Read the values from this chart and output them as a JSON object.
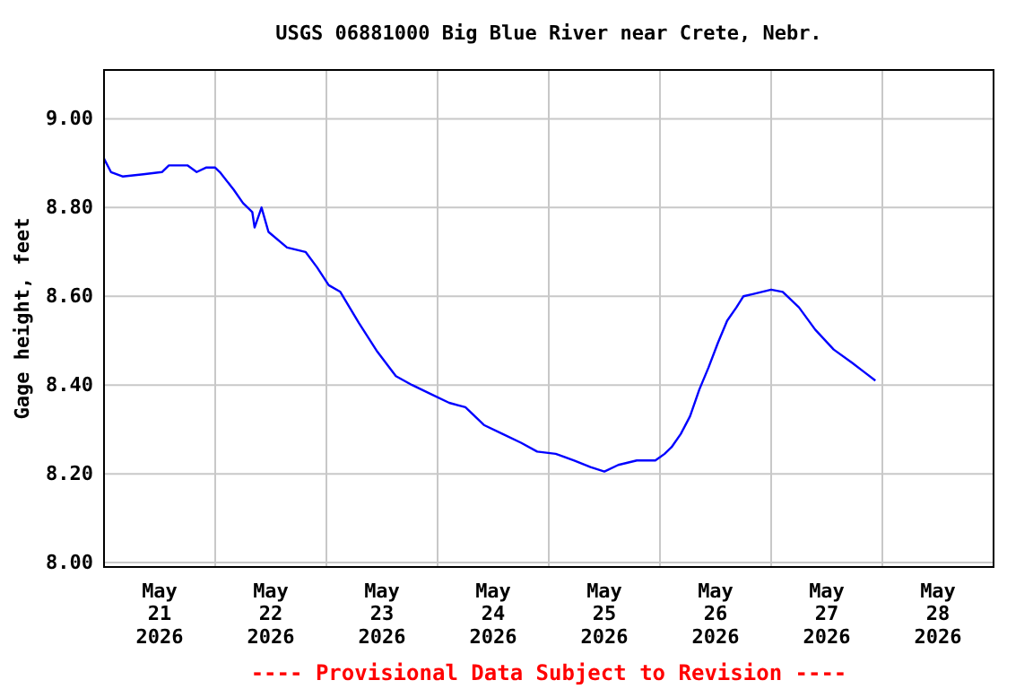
{
  "chart_data": {
    "type": "line",
    "title": "USGS 06881000 Big Blue River near Crete, Nebr.",
    "ylabel": "Gage height, feet",
    "annotations": [
      "---- Provisional Data Subject to Revision ----"
    ],
    "x": [
      "2026-05-21T00:00",
      "2026-05-21T01:30",
      "2026-05-21T04:00",
      "2026-05-21T08:30",
      "2026-05-21T12:30",
      "2026-05-21T14:00",
      "2026-05-21T18:00",
      "2026-05-21T20:00",
      "2026-05-21T22:00",
      "2026-05-22T00:00",
      "2026-05-22T01:00",
      "2026-05-22T04:00",
      "2026-05-22T06:00",
      "2026-05-22T08:00",
      "2026-05-22T08:30",
      "2026-05-22T10:00",
      "2026-05-22T11:30",
      "2026-05-22T15:30",
      "2026-05-22T19:30",
      "2026-05-22T22:00",
      "2026-05-23T00:30",
      "2026-05-23T03:00",
      "2026-05-23T07:00",
      "2026-05-23T11:00",
      "2026-05-23T15:00",
      "2026-05-23T18:30",
      "2026-05-23T22:30",
      "2026-05-24T02:30",
      "2026-05-24T06:00",
      "2026-05-24T10:00",
      "2026-05-24T14:00",
      "2026-05-24T18:00",
      "2026-05-24T21:30",
      "2026-05-25T01:30",
      "2026-05-25T05:30",
      "2026-05-25T09:00",
      "2026-05-25T12:00",
      "2026-05-25T15:00",
      "2026-05-25T19:00",
      "2026-05-25T23:00",
      "2026-05-26T01:00",
      "2026-05-26T02:30",
      "2026-05-26T04:30",
      "2026-05-26T06:30",
      "2026-05-26T08:30",
      "2026-05-26T10:30",
      "2026-05-26T12:30",
      "2026-05-26T14:30",
      "2026-05-26T16:30",
      "2026-05-26T18:00",
      "2026-05-26T20:00",
      "2026-05-26T22:00",
      "2026-05-27T00:00",
      "2026-05-27T02:30",
      "2026-05-27T06:00",
      "2026-05-27T09:30",
      "2026-05-27T13:30",
      "2026-05-27T17:30",
      "2026-05-27T20:00",
      "2026-05-27T22:30"
    ],
    "series": [
      {
        "color": "#0000ff",
        "values": [
          8.91,
          8.88,
          8.87,
          8.875,
          8.88,
          8.895,
          8.895,
          8.88,
          8.89,
          8.89,
          8.88,
          8.84,
          8.81,
          8.79,
          8.755,
          8.8,
          8.745,
          8.71,
          8.7,
          8.665,
          8.625,
          8.61,
          8.54,
          8.475,
          8.42,
          8.4,
          8.38,
          8.36,
          8.35,
          8.31,
          8.29,
          8.27,
          8.25,
          8.245,
          8.23,
          8.215,
          8.205,
          8.22,
          8.23,
          8.23,
          8.245,
          8.26,
          8.29,
          8.33,
          8.39,
          8.44,
          8.495,
          8.545,
          8.575,
          8.6,
          8.605,
          8.61,
          8.615,
          8.61,
          8.575,
          8.525,
          8.48,
          8.45,
          8.43,
          8.41
        ]
      }
    ],
    "xlim": [
      "2026-05-21T00:00",
      "2026-05-29T00:00"
    ],
    "xticks": [
      {
        "value": "2026-05-21T12:00",
        "label": "May 21 2026"
      },
      {
        "value": "2026-05-22T00:00",
        "label": null
      },
      {
        "value": "2026-05-22T12:00",
        "label": "May 22 2026"
      },
      {
        "value": "2026-05-23T00:00",
        "label": null
      },
      {
        "value": "2026-05-23T12:00",
        "label": "May 23 2026"
      },
      {
        "value": "2026-05-24T00:00",
        "label": null
      },
      {
        "value": "2026-05-24T12:00",
        "label": "May 24 2026"
      },
      {
        "value": "2026-05-25T00:00",
        "label": null
      },
      {
        "value": "2026-05-25T12:00",
        "label": "May 25 2026"
      },
      {
        "value": "2026-05-26T00:00",
        "label": null
      },
      {
        "value": "2026-05-26T12:00",
        "label": "May 26 2026"
      },
      {
        "value": "2026-05-27T00:00",
        "label": null
      },
      {
        "value": "2026-05-27T12:00",
        "label": "May 27 2026"
      },
      {
        "value": "2026-05-28T00:00",
        "label": null
      },
      {
        "value": "2026-05-28T12:00",
        "label": "May 28 2026"
      }
    ],
    "ylim": [
      7.99,
      9.11
    ],
    "yticks": [
      {
        "value": 8,
        "label": "8.00"
      },
      {
        "value": 8.2,
        "label": "8.20"
      },
      {
        "value": 8.4,
        "label": "8.40"
      },
      {
        "value": 8.6,
        "label": "8.60"
      },
      {
        "value": 8.8,
        "label": "8.80"
      },
      {
        "value": 9,
        "label": "9.00"
      }
    ],
    "grid": true,
    "marker": "none",
    "line_style": "solid"
  }
}
